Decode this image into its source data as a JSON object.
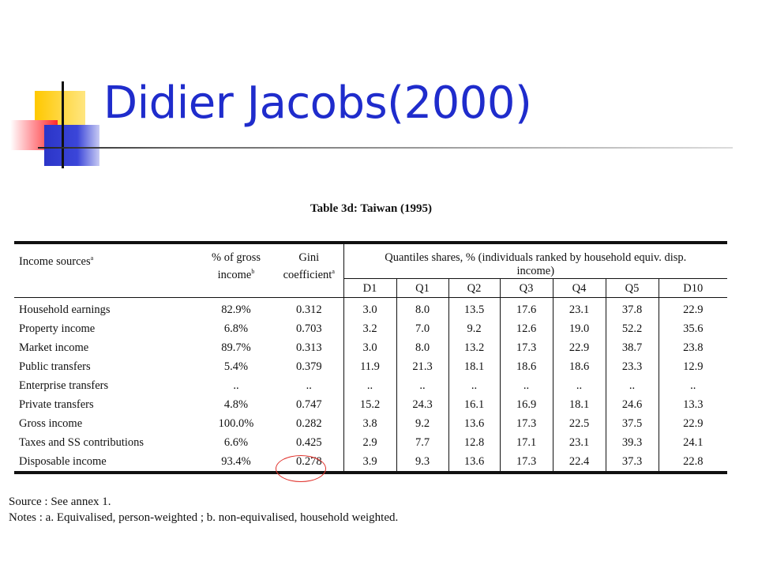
{
  "slide": {
    "title": "Didier Jacobs(2000)"
  },
  "table": {
    "caption": "Table 3d: Taiwan (1995)",
    "headers": {
      "income_sources": "Income sources",
      "income_sources_sup": "a",
      "gross_pct_line1": "% of gross",
      "gross_pct_line2": "income",
      "gross_pct_sup": "b",
      "gini_line1": "Gini",
      "gini_line2": "coefficient",
      "gini_sup": "a",
      "quantiles_line1": "Quantiles shares, % (individuals ranked by household equiv. disp.",
      "quantiles_line2": "income)",
      "sub": [
        "D1",
        "Q1",
        "Q2",
        "Q3",
        "Q4",
        "Q5",
        "D10"
      ]
    },
    "rows": [
      {
        "source": "Household earnings",
        "gross": "82.9%",
        "gini": "0.312",
        "q": [
          "3.0",
          "8.0",
          "13.5",
          "17.6",
          "23.1",
          "37.8",
          "22.9"
        ]
      },
      {
        "source": "Property income",
        "gross": "6.8%",
        "gini": "0.703",
        "q": [
          "3.2",
          "7.0",
          "9.2",
          "12.6",
          "19.0",
          "52.2",
          "35.6"
        ]
      },
      {
        "source": "Market income",
        "gross": "89.7%",
        "gini": "0.313",
        "q": [
          "3.0",
          "8.0",
          "13.2",
          "17.3",
          "22.9",
          "38.7",
          "23.8"
        ]
      },
      {
        "source": "Public transfers",
        "gross": "5.4%",
        "gini": "0.379",
        "q": [
          "11.9",
          "21.3",
          "18.1",
          "18.6",
          "18.6",
          "23.3",
          "12.9"
        ]
      },
      {
        "source": "Enterprise transfers",
        "gross": "..",
        "gini": "..",
        "q": [
          "..",
          "..",
          "..",
          "..",
          "..",
          "..",
          ".."
        ]
      },
      {
        "source": "Private transfers",
        "gross": "4.8%",
        "gini": "0.747",
        "q": [
          "15.2",
          "24.3",
          "16.1",
          "16.9",
          "18.1",
          "24.6",
          "13.3"
        ]
      },
      {
        "source": "Gross income",
        "gross": "100.0%",
        "gini": "0.282",
        "q": [
          "3.8",
          "9.2",
          "13.6",
          "17.3",
          "22.5",
          "37.5",
          "22.9"
        ]
      },
      {
        "source": "Taxes and SS contributions",
        "gross": "6.6%",
        "gini": "0.425",
        "q": [
          "2.9",
          "7.7",
          "12.8",
          "17.1",
          "23.1",
          "39.3",
          "24.1"
        ]
      },
      {
        "source": "Disposable income",
        "gross": "93.4%",
        "gini": "0.278",
        "q": [
          "3.9",
          "9.3",
          "13.6",
          "17.3",
          "22.4",
          "37.3",
          "22.8"
        ]
      }
    ]
  },
  "footnotes": {
    "source": "Source : See annex 1.",
    "notes": "Notes : a. Equivalised, person-weighted ; b. non-equivalised, household weighted."
  },
  "colors": {
    "title": "#1f2ccc",
    "highlight_circle": "#e0302a"
  }
}
